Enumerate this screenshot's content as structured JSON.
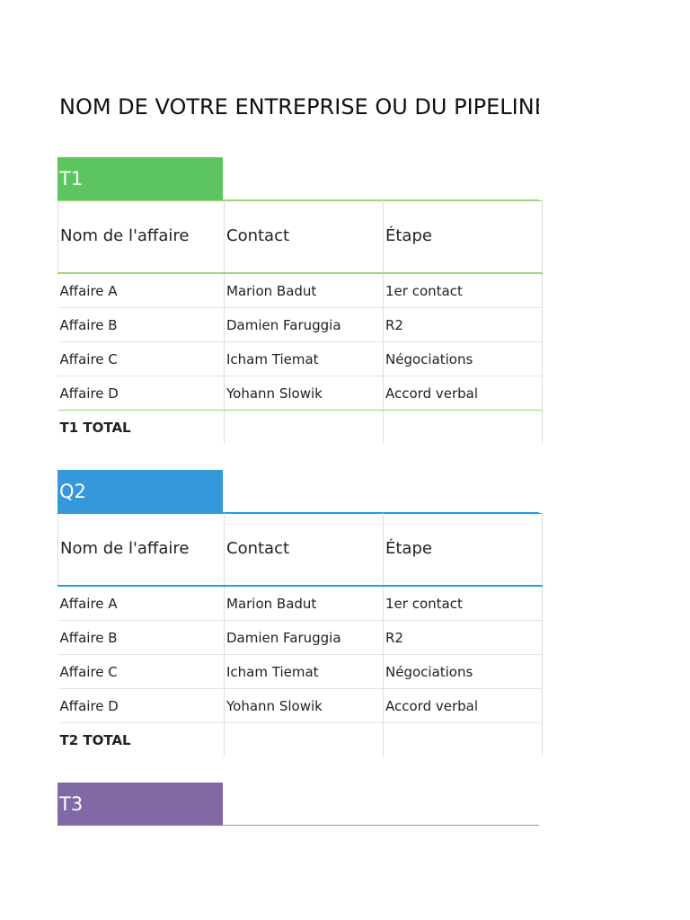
{
  "title": "NOM DE VOTRE ENTREPRISE OU DU PIPELINE",
  "columns": [
    "Nom de l'affaire",
    "Contact",
    "Étape"
  ],
  "sections": [
    {
      "label": "T1",
      "color": "#5dc560",
      "line_color": "#9ad77a",
      "rows": [
        [
          "Affaire A",
          "Marion Badut",
          "1er contact"
        ],
        [
          "Affaire B",
          "Damien Faruggia",
          "R2"
        ],
        [
          "Affaire C",
          "Icham Tiemat",
          "Négociations"
        ],
        [
          "Affaire D",
          "Yohann Slowik",
          "Accord verbal"
        ]
      ],
      "total": "T1 TOTAL"
    },
    {
      "label": "Q2",
      "color": "#3498db",
      "line_color": "#1aa3e8",
      "rows": [
        [
          "Affaire A",
          "Marion Badut",
          "1er contact"
        ],
        [
          "Affaire B",
          "Damien Faruggia",
          "R2"
        ],
        [
          "Affaire C",
          "Icham Tiemat",
          "Négociations"
        ],
        [
          "Affaire D",
          "Yohann Slowik",
          "Accord verbal"
        ]
      ],
      "total": "T2 TOTAL"
    },
    {
      "label": "T3",
      "color": "#8069a5",
      "line_color": "#9b86bf"
    }
  ]
}
